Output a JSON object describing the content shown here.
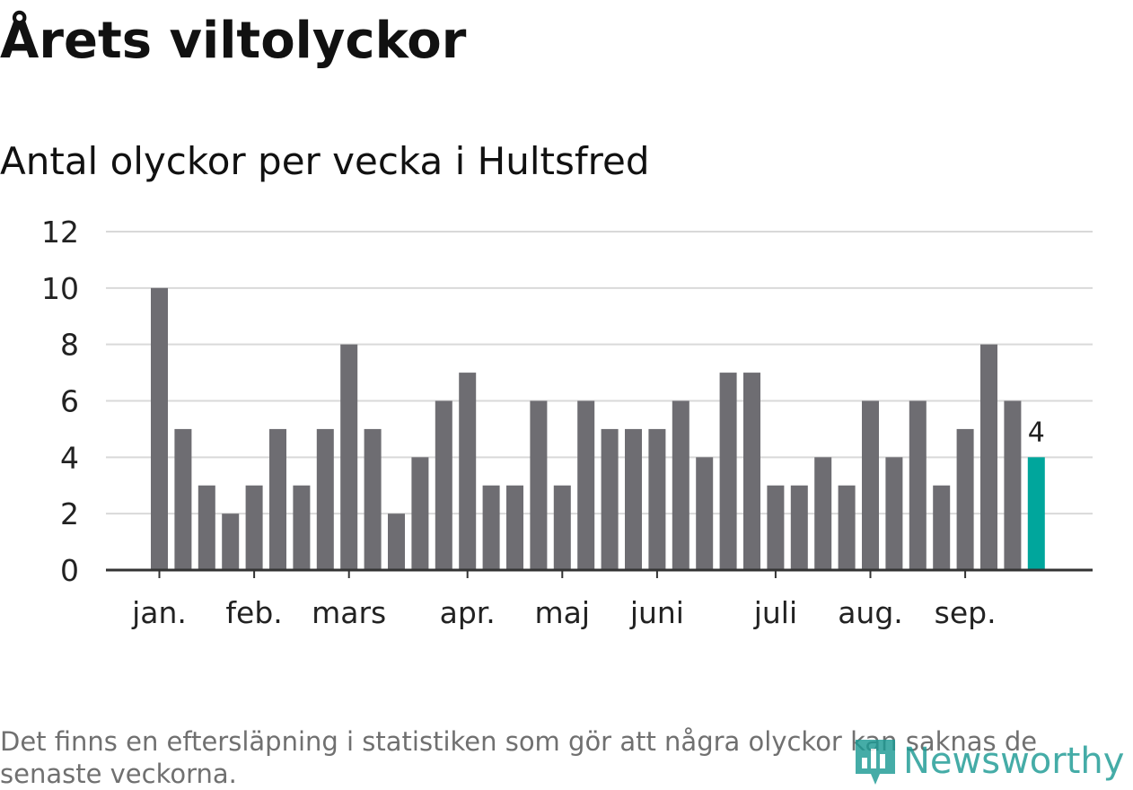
{
  "chart_data": {
    "type": "bar",
    "title": "Årets viltolyckor",
    "subtitle": "Antal olyckor per vecka i Hultsfred",
    "xlabel": "",
    "ylabel": "",
    "ylim": [
      0,
      12
    ],
    "yticks": [
      0,
      2,
      4,
      6,
      8,
      10,
      12
    ],
    "grid": true,
    "values": [
      10,
      5,
      3,
      2,
      3,
      5,
      3,
      5,
      8,
      5,
      2,
      4,
      6,
      7,
      3,
      3,
      6,
      3,
      6,
      5,
      5,
      5,
      6,
      4,
      7,
      7,
      3,
      3,
      4,
      3,
      6,
      4,
      6,
      3,
      5,
      8,
      6,
      4
    ],
    "month_labels": [
      {
        "label": "jan.",
        "week_index": 0
      },
      {
        "label": "feb.",
        "week_index": 4
      },
      {
        "label": "mars",
        "week_index": 8
      },
      {
        "label": "apr.",
        "week_index": 13
      },
      {
        "label": "maj",
        "week_index": 17
      },
      {
        "label": "juni",
        "week_index": 21
      },
      {
        "label": "juli",
        "week_index": 26
      },
      {
        "label": "aug.",
        "week_index": 30
      },
      {
        "label": "sep.",
        "week_index": 34
      }
    ],
    "highlight": {
      "week_index": 37,
      "label": "4"
    },
    "colors": {
      "bar": "#6e6d72",
      "highlight": "#00a69c",
      "grid": "#d9d9d9",
      "axis": "#333333",
      "tick_text": "#222222"
    }
  },
  "footnote": "Det finns en eftersläpning i statistiken som gör att några olyckor kan saknas de senaste veckorna.",
  "logo": {
    "text": "Newsworthy",
    "icon": "newsworthy-chart-icon",
    "color": "#1d9a94"
  }
}
